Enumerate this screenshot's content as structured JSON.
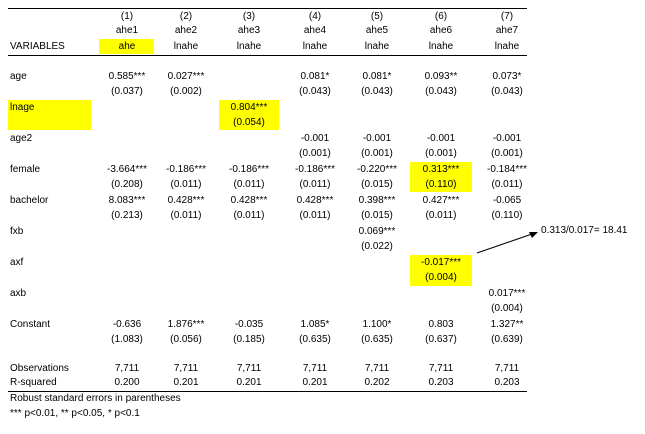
{
  "table": {
    "col_numbers": [
      "(1)",
      "(2)",
      "(3)",
      "(4)",
      "(5)",
      "(6)",
      "(7)"
    ],
    "depvars": [
      "ahe1",
      "ahe2",
      "ahe3",
      "ahe4",
      "ahe5",
      "ahe6",
      "ahe7"
    ],
    "variables_label": "VARIABLES",
    "dep_labels": [
      "ahe",
      "lnahe",
      "lnahe",
      "lnahe",
      "lnahe",
      "lnahe",
      "lnahe"
    ],
    "rows": [
      {
        "name": "age",
        "coef": [
          "0.585***",
          "0.027***",
          "",
          "0.081*",
          "0.081*",
          "0.093**",
          "0.073*"
        ],
        "se": [
          "(0.037)",
          "(0.002)",
          "",
          "(0.043)",
          "(0.043)",
          "(0.043)",
          "(0.043)"
        ]
      },
      {
        "name": "lnage",
        "coef": [
          "",
          "",
          "0.804***",
          "",
          "",
          "",
          ""
        ],
        "se": [
          "",
          "",
          "(0.054)",
          "",
          "",
          "",
          ""
        ]
      },
      {
        "name": "age2",
        "coef": [
          "",
          "",
          "",
          "-0.001",
          "-0.001",
          "-0.001",
          "-0.001"
        ],
        "se": [
          "",
          "",
          "",
          "(0.001)",
          "(0.001)",
          "(0.001)",
          "(0.001)"
        ]
      },
      {
        "name": "female",
        "coef": [
          "-3.664***",
          "-0.186***",
          "-0.186***",
          "-0.186***",
          "-0.220***",
          "0.313***",
          "-0.184***"
        ],
        "se": [
          "(0.208)",
          "(0.011)",
          "(0.011)",
          "(0.011)",
          "(0.015)",
          "(0.110)",
          "(0.011)"
        ]
      },
      {
        "name": "bachelor",
        "coef": [
          "8.083***",
          "0.428***",
          "0.428***",
          "0.428***",
          "0.398***",
          "0.427***",
          "-0.065"
        ],
        "se": [
          "(0.213)",
          "(0.011)",
          "(0.011)",
          "(0.011)",
          "(0.015)",
          "(0.011)",
          "(0.110)"
        ]
      },
      {
        "name": "fxb",
        "coef": [
          "",
          "",
          "",
          "",
          "0.069***",
          "",
          ""
        ],
        "se": [
          "",
          "",
          "",
          "",
          "(0.022)",
          "",
          ""
        ]
      },
      {
        "name": "axf",
        "coef": [
          "",
          "",
          "",
          "",
          "",
          "-0.017***",
          ""
        ],
        "se": [
          "",
          "",
          "",
          "",
          "",
          "(0.004)",
          ""
        ]
      },
      {
        "name": "axb",
        "coef": [
          "",
          "",
          "",
          "",
          "",
          "",
          "0.017***"
        ],
        "se": [
          "",
          "",
          "",
          "",
          "",
          "",
          "(0.004)"
        ]
      },
      {
        "name": "Constant",
        "coef": [
          "-0.636",
          "1.876***",
          "-0.035",
          "1.085*",
          "1.100*",
          "0.803",
          "1.327**"
        ],
        "se": [
          "(1.083)",
          "(0.056)",
          "(0.185)",
          "(0.635)",
          "(0.635)",
          "(0.637)",
          "(0.639)"
        ]
      }
    ],
    "observations": {
      "name": "Observations",
      "values": [
        "7,711",
        "7,711",
        "7,711",
        "7,711",
        "7,711",
        "7,711",
        "7,711"
      ]
    },
    "rsquared": {
      "name": "R-squared",
      "values": [
        "0.200",
        "0.201",
        "0.201",
        "0.201",
        "0.202",
        "0.203",
        "0.203"
      ]
    }
  },
  "notes": {
    "line1": "Robust standard errors in parentheses",
    "line2": "*** p<0.01, ** p<0.05, * p<0.1"
  },
  "annotation": {
    "text": "0.313/0.017= 18.41"
  },
  "highlight_color": "#ffff00"
}
